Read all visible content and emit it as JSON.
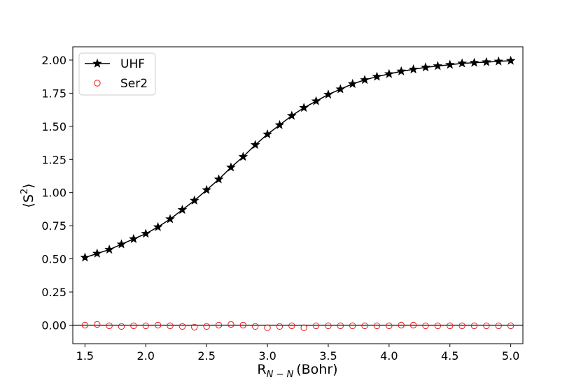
{
  "chart_data": {
    "type": "line",
    "xlabel": {
      "main": "R",
      "sub": "N − N",
      "unit": "(Bohr)"
    },
    "ylabel": {
      "main": "⟨S",
      "sup": "2",
      "close": "⟩"
    },
    "xlim": [
      1.4,
      5.1
    ],
    "ylim": [
      -0.14,
      2.1
    ],
    "xticks": [
      1.5,
      2.0,
      2.5,
      3.0,
      3.5,
      4.0,
      4.5,
      5.0
    ],
    "xtick_labels": [
      "1.5",
      "2.0",
      "2.5",
      "3.0",
      "3.5",
      "4.0",
      "4.5",
      "5.0"
    ],
    "yticks": [
      0.0,
      0.25,
      0.5,
      0.75,
      1.0,
      1.25,
      1.5,
      1.75,
      2.0
    ],
    "ytick_labels": [
      "0.00",
      "0.25",
      "0.50",
      "0.75",
      "1.00",
      "1.25",
      "1.50",
      "1.75",
      "2.00"
    ],
    "reference_line_y": 0.0,
    "legend_position": "top-left",
    "x": [
      1.5,
      1.6,
      1.7,
      1.8,
      1.9,
      2.0,
      2.1,
      2.2,
      2.3,
      2.4,
      2.5,
      2.6,
      2.7,
      2.8,
      2.9,
      3.0,
      3.1,
      3.2,
      3.3,
      3.4,
      3.5,
      3.6,
      3.7,
      3.8,
      3.9,
      4.0,
      4.1,
      4.2,
      4.3,
      4.4,
      4.5,
      4.6,
      4.7,
      4.8,
      4.9,
      5.0
    ],
    "series": [
      {
        "name": "UHF",
        "color": "#000000",
        "marker": "star",
        "line": true,
        "values": [
          0.51,
          0.54,
          0.57,
          0.61,
          0.65,
          0.69,
          0.74,
          0.8,
          0.87,
          0.94,
          1.02,
          1.1,
          1.19,
          1.27,
          1.36,
          1.44,
          1.51,
          1.58,
          1.64,
          1.69,
          1.74,
          1.78,
          1.82,
          1.85,
          1.875,
          1.895,
          1.915,
          1.93,
          1.945,
          1.955,
          1.965,
          1.975,
          1.98,
          1.985,
          1.99,
          1.995
        ]
      },
      {
        "name": "Ser2",
        "color": "#e41a1c",
        "marker": "circle-open",
        "line": false,
        "values": [
          0.0,
          0.005,
          -0.005,
          -0.01,
          -0.005,
          -0.005,
          0.0,
          -0.005,
          -0.01,
          -0.015,
          -0.01,
          0.0,
          0.005,
          0.0,
          -0.01,
          -0.02,
          -0.01,
          -0.005,
          -0.02,
          -0.005,
          -0.005,
          -0.005,
          -0.005,
          -0.005,
          -0.005,
          -0.005,
          0.0,
          0.0,
          -0.005,
          -0.005,
          -0.005,
          -0.005,
          -0.005,
          -0.005,
          -0.005,
          -0.005
        ]
      }
    ]
  }
}
